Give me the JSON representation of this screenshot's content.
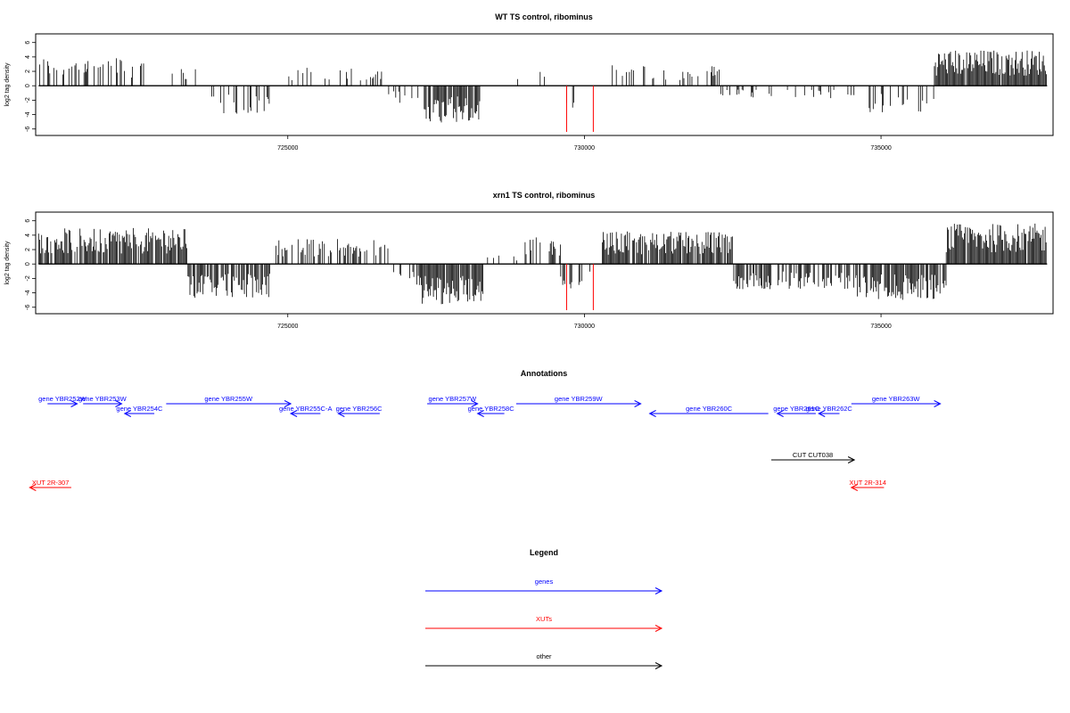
{
  "colors": {
    "genes": "#0000ff",
    "xuts": "#ff0000",
    "other": "#000000",
    "marker": "#ff0000"
  },
  "chart_data": [
    {
      "type": "bar",
      "title": "WT TS control, ribominus",
      "ylabel": "log2 tag density",
      "xlim": [
        720750,
        737900
      ],
      "ylim": [
        -6.9,
        7.2
      ],
      "xticks": [
        725000,
        730000,
        735000
      ],
      "yticks": [
        -6,
        -4,
        -2,
        0,
        2,
        4,
        6
      ],
      "markers_x": [
        729700,
        730150
      ],
      "segments": [
        {
          "from": 720800,
          "to": 722600,
          "value": 3.2,
          "density": 0.35
        },
        {
          "from": 723000,
          "to": 723700,
          "value": 2.0,
          "density": 0.2
        },
        {
          "from": 723700,
          "to": 724700,
          "value": -3.2,
          "density": 0.35
        },
        {
          "from": 725000,
          "to": 726700,
          "value": 2.0,
          "density": 0.2
        },
        {
          "from": 726700,
          "to": 727200,
          "value": -2.0,
          "density": 0.25
        },
        {
          "from": 727300,
          "to": 728250,
          "value": -4.2,
          "density": 0.85
        },
        {
          "from": 728500,
          "to": 729000,
          "value": 0.8,
          "density": 0.05
        },
        {
          "from": 729000,
          "to": 729400,
          "value": 2.0,
          "density": 0.15
        },
        {
          "from": 729700,
          "to": 730000,
          "value": -2.5,
          "density": 0.2
        },
        {
          "from": 730300,
          "to": 732300,
          "value": 2.3,
          "density": 0.25
        },
        {
          "from": 732300,
          "to": 734800,
          "value": -1.5,
          "density": 0.18
        },
        {
          "from": 734800,
          "to": 735900,
          "value": -3.0,
          "density": 0.35
        },
        {
          "from": 735900,
          "to": 737800,
          "value": 4.0,
          "density": 0.95
        }
      ]
    },
    {
      "type": "bar",
      "title": "xrn1 TS control, ribominus",
      "ylabel": "log2 tag density",
      "xlim": [
        720750,
        737900
      ],
      "ylim": [
        -6.9,
        7.2
      ],
      "xticks": [
        725000,
        730000,
        735000
      ],
      "yticks": [
        -6,
        -4,
        -2,
        0,
        2,
        4,
        6
      ],
      "markers_x": [
        729700,
        730150
      ],
      "segments": [
        {
          "from": 720800,
          "to": 723300,
          "value": 4.0,
          "density": 0.85
        },
        {
          "from": 723300,
          "to": 724700,
          "value": -3.8,
          "density": 0.8
        },
        {
          "from": 724800,
          "to": 726700,
          "value": 2.8,
          "density": 0.5
        },
        {
          "from": 726700,
          "to": 727200,
          "value": -2.5,
          "density": 0.45
        },
        {
          "from": 727200,
          "to": 728300,
          "value": -4.5,
          "density": 0.95
        },
        {
          "from": 728300,
          "to": 729000,
          "value": 1.0,
          "density": 0.1
        },
        {
          "from": 729000,
          "to": 729600,
          "value": 3.0,
          "density": 0.4
        },
        {
          "from": 729600,
          "to": 730100,
          "value": -3.0,
          "density": 0.45
        },
        {
          "from": 730300,
          "to": 732500,
          "value": 3.6,
          "density": 0.9
        },
        {
          "from": 732500,
          "to": 734600,
          "value": -2.8,
          "density": 0.6
        },
        {
          "from": 734600,
          "to": 736100,
          "value": -4.0,
          "density": 0.9
        },
        {
          "from": 736100,
          "to": 737800,
          "value": 4.5,
          "density": 0.98
        }
      ]
    }
  ],
  "annotations": {
    "title": "Annotations",
    "features": [
      {
        "label": "gene YBR252W",
        "from": 720950,
        "to": 721450,
        "dir": "right",
        "kind": "genes",
        "row": 0
      },
      {
        "label": "gene YBR253W",
        "from": 721550,
        "to": 722200,
        "dir": "right",
        "kind": "genes",
        "row": 0
      },
      {
        "label": "gene YBR254C",
        "from": 722250,
        "to": 722750,
        "dir": "left",
        "kind": "genes",
        "row": 1
      },
      {
        "label": "gene YBR255W",
        "from": 722950,
        "to": 725050,
        "dir": "right",
        "kind": "genes",
        "row": 0
      },
      {
        "label": "gene YBR255C-A",
        "from": 725050,
        "to": 725550,
        "dir": "left",
        "kind": "genes",
        "row": 1
      },
      {
        "label": "gene YBR256C",
        "from": 725850,
        "to": 726550,
        "dir": "left",
        "kind": "genes",
        "row": 1
      },
      {
        "label": "gene YBR257W",
        "from": 727350,
        "to": 728200,
        "dir": "right",
        "kind": "genes",
        "row": 0
      },
      {
        "label": "gene YBR258C",
        "from": 728200,
        "to": 728650,
        "dir": "left",
        "kind": "genes",
        "row": 1
      },
      {
        "label": "gene YBR259W",
        "from": 728850,
        "to": 730950,
        "dir": "right",
        "kind": "genes",
        "row": 0
      },
      {
        "label": "gene YBR260C",
        "from": 731100,
        "to": 733100,
        "dir": "left",
        "kind": "genes",
        "row": 1
      },
      {
        "label": "gene YBR261C",
        "from": 733250,
        "to": 733900,
        "dir": "left",
        "kind": "genes",
        "row": 1
      },
      {
        "label": "gene YBR262C",
        "from": 733950,
        "to": 734300,
        "dir": "left",
        "kind": "genes",
        "row": 1
      },
      {
        "label": "gene YBR263W",
        "from": 734500,
        "to": 736000,
        "dir": "right",
        "kind": "genes",
        "row": 0
      },
      {
        "label": "CUT CUT038",
        "from": 733150,
        "to": 734550,
        "dir": "right",
        "kind": "other",
        "row": 2
      },
      {
        "label": "XUT 2R-307",
        "from": 720650,
        "to": 721350,
        "dir": "left",
        "kind": "xuts",
        "row": 3
      },
      {
        "label": "XUT 2R-314",
        "from": 734500,
        "to": 735050,
        "dir": "left",
        "kind": "xuts",
        "row": 3
      }
    ]
  },
  "legend": {
    "title": "Legend",
    "items": [
      {
        "label": "genes",
        "kind": "genes"
      },
      {
        "label": "XUTs",
        "kind": "xuts"
      },
      {
        "label": "other",
        "kind": "other"
      }
    ]
  }
}
